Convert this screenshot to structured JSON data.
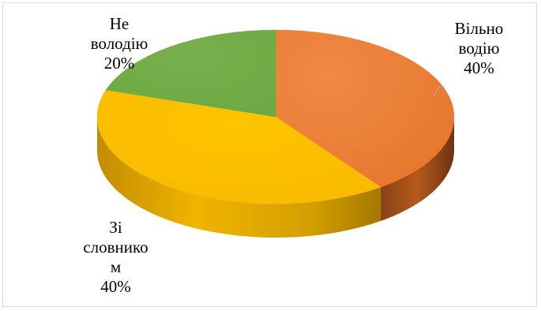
{
  "chart_data": {
    "type": "pie",
    "title": "",
    "slices": [
      {
        "label_lines": [
          "Вільно",
          "водію"
        ],
        "value": 40,
        "value_label": "40%",
        "color": "#ED7D31"
      },
      {
        "label_lines": [
          "Зі",
          "словнико",
          "м"
        ],
        "value": 40,
        "value_label": "40%",
        "color": "#FFC000"
      },
      {
        "label_lines": [
          "Не",
          "володію"
        ],
        "value": 20,
        "value_label": "20%",
        "color": "#70AD47"
      }
    ]
  }
}
